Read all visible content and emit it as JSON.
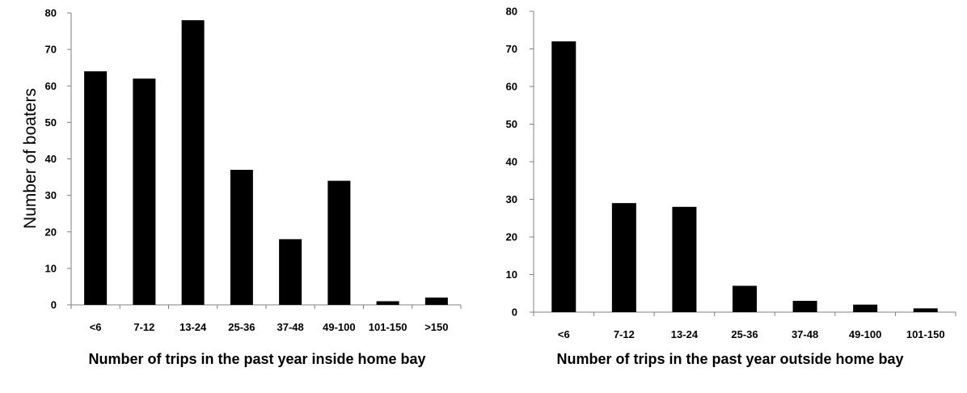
{
  "chart_data": [
    {
      "type": "bar",
      "categories": [
        "<6",
        "7-12",
        "13-24",
        "25-36",
        "37-48",
        "49-100",
        "101-150",
        ">150"
      ],
      "values": [
        64,
        62,
        78,
        37,
        18,
        34,
        1,
        2
      ],
      "xlabel": "Number of trips in the past year inside home bay",
      "ylabel": "Number of boaters",
      "ylim": [
        0,
        80
      ],
      "yticks": [
        0,
        10,
        20,
        30,
        40,
        50,
        60,
        70,
        80
      ],
      "grid": false,
      "legend": "none",
      "bar_color": "#000000"
    },
    {
      "type": "bar",
      "categories": [
        "<6",
        "7-12",
        "13-24",
        "25-36",
        "37-48",
        "49-100",
        "101-150"
      ],
      "values": [
        72,
        29,
        28,
        7,
        3,
        2,
        1
      ],
      "xlabel": "Number of trips in the past year outside home bay",
      "ylabel": "",
      "ylim": [
        0,
        80
      ],
      "yticks": [
        0,
        10,
        20,
        30,
        40,
        50,
        60,
        70,
        80
      ],
      "grid": false,
      "legend": "none",
      "bar_color": "#000000"
    }
  ]
}
